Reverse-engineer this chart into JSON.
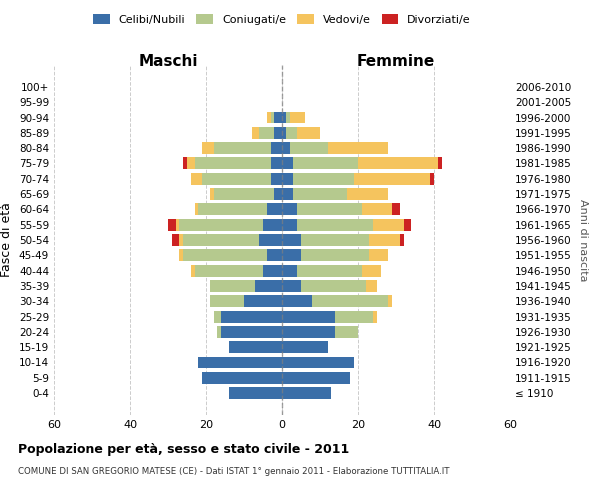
{
  "age_groups": [
    "100+",
    "95-99",
    "90-94",
    "85-89",
    "80-84",
    "75-79",
    "70-74",
    "65-69",
    "60-64",
    "55-59",
    "50-54",
    "45-49",
    "40-44",
    "35-39",
    "30-34",
    "25-29",
    "20-24",
    "15-19",
    "10-14",
    "5-9",
    "0-4"
  ],
  "birth_years": [
    "≤ 1910",
    "1911-1915",
    "1916-1920",
    "1921-1925",
    "1926-1930",
    "1931-1935",
    "1936-1940",
    "1941-1945",
    "1946-1950",
    "1951-1955",
    "1956-1960",
    "1961-1965",
    "1966-1970",
    "1971-1975",
    "1976-1980",
    "1981-1985",
    "1986-1990",
    "1991-1995",
    "1996-2000",
    "2001-2005",
    "2006-2010"
  ],
  "maschi_celibi": [
    0,
    0,
    2,
    2,
    3,
    3,
    3,
    2,
    4,
    5,
    6,
    4,
    5,
    7,
    10,
    16,
    16,
    14,
    22,
    21,
    14
  ],
  "maschi_coniugati": [
    0,
    0,
    1,
    4,
    15,
    20,
    18,
    16,
    18,
    22,
    20,
    22,
    18,
    12,
    9,
    2,
    1,
    0,
    0,
    0,
    0
  ],
  "maschi_vedovi": [
    0,
    0,
    1,
    2,
    3,
    2,
    3,
    1,
    1,
    1,
    1,
    1,
    1,
    0,
    0,
    0,
    0,
    0,
    0,
    0,
    0
  ],
  "maschi_divorziati": [
    0,
    0,
    0,
    0,
    0,
    1,
    0,
    0,
    0,
    2,
    2,
    0,
    0,
    0,
    0,
    0,
    0,
    0,
    0,
    0,
    0
  ],
  "femmine_celibi": [
    0,
    0,
    1,
    1,
    2,
    3,
    3,
    3,
    4,
    4,
    5,
    5,
    4,
    5,
    8,
    14,
    14,
    12,
    19,
    18,
    13
  ],
  "femmine_coniugati": [
    0,
    0,
    1,
    3,
    10,
    17,
    16,
    14,
    17,
    20,
    18,
    18,
    17,
    17,
    20,
    10,
    6,
    0,
    0,
    0,
    0
  ],
  "femmine_vedovi": [
    0,
    0,
    4,
    6,
    16,
    21,
    20,
    11,
    8,
    8,
    8,
    5,
    5,
    3,
    1,
    1,
    0,
    0,
    0,
    0,
    0
  ],
  "femmine_divorziati": [
    0,
    0,
    0,
    0,
    0,
    1,
    1,
    0,
    2,
    2,
    1,
    0,
    0,
    0,
    0,
    0,
    0,
    0,
    0,
    0,
    0
  ],
  "color_celibi": "#3a6ea8",
  "color_coniugati": "#b5c98e",
  "color_vedovi": "#f5c45e",
  "color_divorziati": "#cc2222",
  "title": "Popolazione per età, sesso e stato civile - 2011",
  "subtitle": "COMUNE DI SAN GREGORIO MATESE (CE) - Dati ISTAT 1° gennaio 2011 - Elaborazione TUTTITALIA.IT",
  "label_maschi": "Maschi",
  "label_femmine": "Femmine",
  "ylabel_left": "Fasce di età",
  "ylabel_right": "Anni di nascita",
  "legend_labels": [
    "Celibi/Nubili",
    "Coniugati/e",
    "Vedovi/e",
    "Divorziati/e"
  ],
  "xlim": 60,
  "bg_color": "#ffffff",
  "grid_color": "#cccccc"
}
